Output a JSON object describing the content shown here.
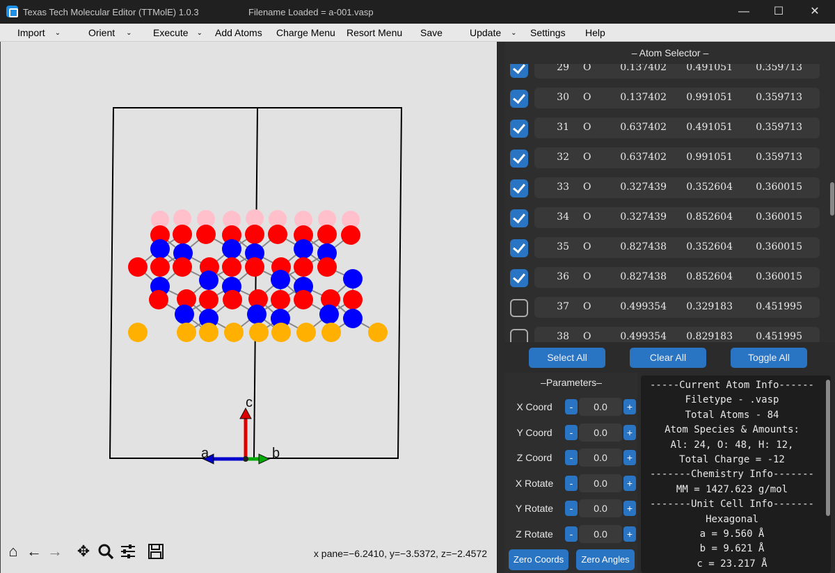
{
  "window": {
    "title": "Texas Tech Molecular Editor (TTMolE) 1.0.3",
    "filename": "Filename Loaded = a-001.vasp",
    "minimize": "—",
    "maximize": "☐",
    "close": "✕"
  },
  "menu": {
    "import": "Import",
    "orient": "Orient",
    "execute": "Execute",
    "add_atoms": "Add Atoms",
    "charge_menu": "Charge Menu",
    "resort_menu": "Resort Menu",
    "save": "Save",
    "update": "Update",
    "settings": "Settings",
    "help": "Help",
    "dropdown_glyph": "⌄"
  },
  "plot": {
    "axis_a": "a",
    "axis_b": "b",
    "axis_c": "c",
    "readout": "x pane=−6.2410, y=−3.5372, z=−2.4572",
    "colors": {
      "O": "#ff0000",
      "Al": "#0000ff",
      "H": "#ffc0cb",
      "bottom": "#ffb000"
    }
  },
  "toolbar_icons": [
    "home-icon",
    "back-arrow-icon",
    "forward-arrow-icon",
    "pan-icon",
    "zoom-icon",
    "configure-icon",
    "save-figure-icon"
  ],
  "atom_selector": {
    "header": "– Atom Selector –",
    "rows": [
      {
        "checked": true,
        "index": "29",
        "element": "O",
        "x": "0.137402",
        "y": "0.491051",
        "z": "0.359713"
      },
      {
        "checked": true,
        "index": "30",
        "element": "O",
        "x": "0.137402",
        "y": "0.991051",
        "z": "0.359713"
      },
      {
        "checked": true,
        "index": "31",
        "element": "O",
        "x": "0.637402",
        "y": "0.491051",
        "z": "0.359713"
      },
      {
        "checked": true,
        "index": "32",
        "element": "O",
        "x": "0.637402",
        "y": "0.991051",
        "z": "0.359713"
      },
      {
        "checked": true,
        "index": "33",
        "element": "O",
        "x": "0.327439",
        "y": "0.352604",
        "z": "0.360015"
      },
      {
        "checked": true,
        "index": "34",
        "element": "O",
        "x": "0.327439",
        "y": "0.852604",
        "z": "0.360015"
      },
      {
        "checked": true,
        "index": "35",
        "element": "O",
        "x": "0.827438",
        "y": "0.352604",
        "z": "0.360015"
      },
      {
        "checked": true,
        "index": "36",
        "element": "O",
        "x": "0.827438",
        "y": "0.852604",
        "z": "0.360015"
      },
      {
        "checked": false,
        "index": "37",
        "element": "O",
        "x": "0.499354",
        "y": "0.329183",
        "z": "0.451995"
      },
      {
        "checked": false,
        "index": "38",
        "element": "O",
        "x": "0.499354",
        "y": "0.829183",
        "z": "0.451995"
      }
    ],
    "select_all": "Select All",
    "clear_all": "Clear All",
    "toggle_all": "Toggle All"
  },
  "parameters": {
    "title": "–Parameters–",
    "minus": "-",
    "plus": "+",
    "rows": [
      {
        "label": "X Coord",
        "value": "0.0"
      },
      {
        "label": "Y Coord",
        "value": "0.0"
      },
      {
        "label": "Z Coord",
        "value": "0.0"
      },
      {
        "label": "X Rotate",
        "value": "0.0"
      },
      {
        "label": "Y Rotate",
        "value": "0.0"
      },
      {
        "label": "Z Rotate",
        "value": "0.0"
      }
    ],
    "zero_coords": "Zero Coords",
    "zero_angles": "Zero Angles"
  },
  "info": {
    "lines": [
      "-----Current Atom Info------",
      "Filetype - .vasp",
      "Total Atoms - 84",
      "Atom Species & Amounts:",
      "Al: 24, O: 48, H: 12,",
      "Total Charge = -12",
      "-------Chemistry Info-------",
      "MM = 1427.623 g/mol",
      "-------Unit Cell Info-------",
      "Hexagonal",
      "a = 9.560 Å",
      "b = 9.621 Å",
      "c = 23.217 Å"
    ]
  }
}
